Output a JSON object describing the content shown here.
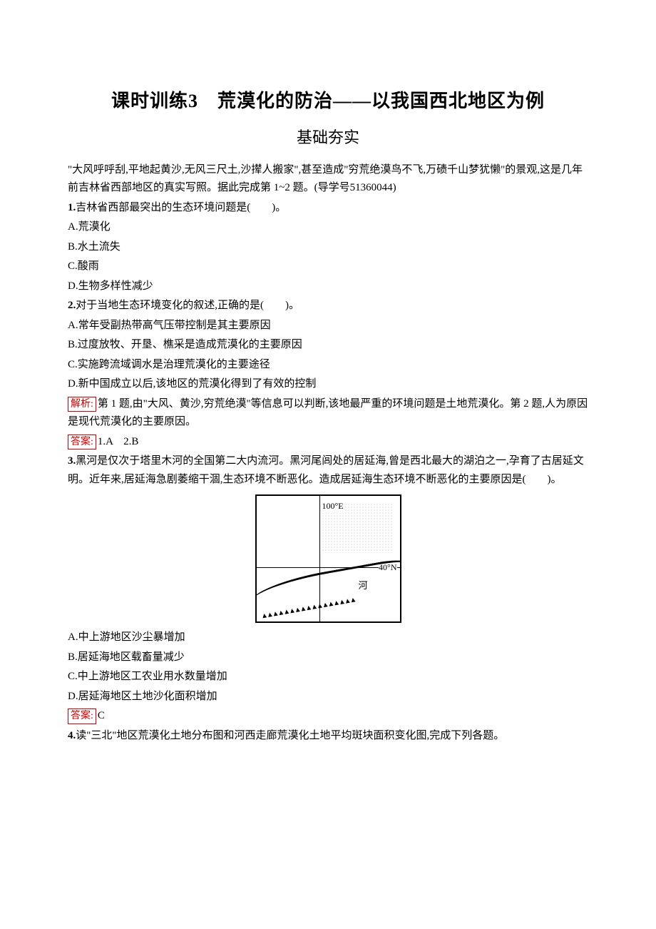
{
  "title": "课时训练3　荒漠化的防治——以我国西北地区为例",
  "subtitle": "基础夯实",
  "intro1": "\"大风呼呼刮,平地起黄沙,无风三尺土,沙撵人搬家\",甚至造成\"穷荒绝漠鸟不飞,万碛千山梦犹懒\"的景观,这是几年前吉林省西部地区的真实写照。据此完成第 1~2 题。(导学号51360044)",
  "q1": {
    "num": "1.",
    "stem": "吉林省西部最突出的生态环境问题是(　　)。",
    "A": "A.荒漠化",
    "B": "B.水土流失",
    "C": "C.酸雨",
    "D": "D.生物多样性减少"
  },
  "q2": {
    "num": "2.",
    "stem": "对于当地生态环境变化的叙述,正确的是(　　)。",
    "A": "A.常年受副热带高气压带控制是其主要原因",
    "B": "B.过度放牧、开垦、樵采是造成荒漠化的主要原因",
    "C": "C.实施跨流域调水是治理荒漠化的主要途径",
    "D": "D.新中国成立以后,该地区的荒漠化得到了有效的控制"
  },
  "analysis_label": "解析:",
  "analysis12": "第 1 题,由\"大风、黄沙,穷荒绝漠\"等信息可以判断,该地最严重的环境问题是土地荒漠化。第 2 题,人为原因是现代荒漠化的主要原因。",
  "answer_label": "答案:",
  "answer12": "1.A　2.B",
  "q3": {
    "num": "3.",
    "stem": "黑河是仅次于塔里木河的全国第二大内流河。黑河尾闾处的居延海,曾是西北最大的湖泊之一,孕育了古居延文明。近年来,居延海急剧萎缩干涸,生态环境不断恶化。造成居延海生态环境不断恶化的主要原因是(　　)。",
    "A": "A.中上游地区沙尘暴增加",
    "B": "B.居延海地区载畜量减少",
    "C": "C.中上游地区工农业用水数量增加",
    "D": "D.居延海地区土地沙化面积增加"
  },
  "map": {
    "lon": "100°E",
    "lat": "40°N",
    "river": "河",
    "mountains": "▲▲▲▲▲▲▲▲▲▲▲▲▲▲▲▲▲"
  },
  "answer3": "C",
  "q4": {
    "num": "4.",
    "stem": "读\"三北\"地区荒漠化土地分布图和河西走廊荒漠化土地平均斑块面积变化图,完成下列各题。"
  },
  "colors": {
    "red": "#cc0000",
    "black": "#000000",
    "bg": "#ffffff"
  }
}
